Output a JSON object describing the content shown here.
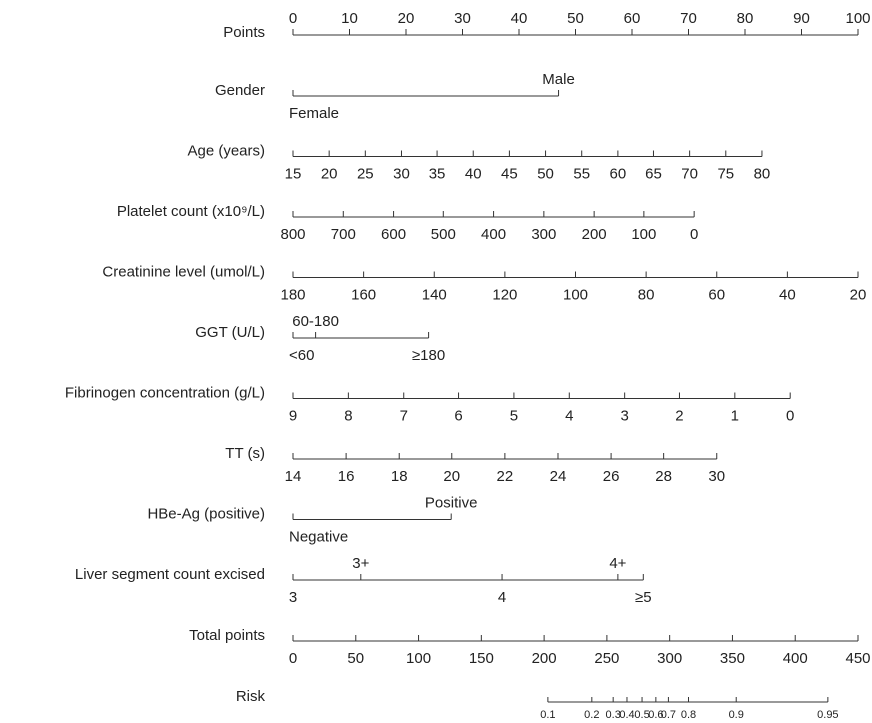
{
  "chart_data": {
    "type": "nomogram",
    "xlim": [
      0,
      100
    ],
    "points": {
      "label": "Points",
      "ticks": [
        0,
        10,
        20,
        30,
        40,
        50,
        60,
        70,
        80,
        90,
        100
      ]
    },
    "rows": [
      {
        "label": "Gender",
        "ticks": [
          {
            "value": 0,
            "label": "Female"
          },
          {
            "value": 47,
            "label": "Male"
          }
        ]
      },
      {
        "label": "Age (years)",
        "ticks": [
          {
            "value": 0,
            "label": "15"
          },
          {
            "value": 6.4,
            "label": "20"
          },
          {
            "value": 12.8,
            "label": "25"
          },
          {
            "value": 19.2,
            "label": "30"
          },
          {
            "value": 25.5,
            "label": "35"
          },
          {
            "value": 31.9,
            "label": "40"
          },
          {
            "value": 38.3,
            "label": "45"
          },
          {
            "value": 44.7,
            "label": "50"
          },
          {
            "value": 51.1,
            "label": "55"
          },
          {
            "value": 57.5,
            "label": "60"
          },
          {
            "value": 63.8,
            "label": "65"
          },
          {
            "value": 70.2,
            "label": "70"
          },
          {
            "value": 76.6,
            "label": "75"
          },
          {
            "value": 83,
            "label": "80"
          }
        ]
      },
      {
        "label": "Platelet count (x10⁹/L)",
        "ticks": [
          {
            "value": 0,
            "label": "800"
          },
          {
            "value": 8.9,
            "label": "700"
          },
          {
            "value": 17.8,
            "label": "600"
          },
          {
            "value": 26.6,
            "label": "500"
          },
          {
            "value": 35.5,
            "label": "400"
          },
          {
            "value": 44.4,
            "label": "300"
          },
          {
            "value": 53.3,
            "label": "200"
          },
          {
            "value": 62.1,
            "label": "100"
          },
          {
            "value": 71,
            "label": "0"
          }
        ]
      },
      {
        "label": "Creatinine level (umol/L)",
        "ticks": [
          {
            "value": 0,
            "label": "180"
          },
          {
            "value": 12.5,
            "label": "160"
          },
          {
            "value": 25,
            "label": "140"
          },
          {
            "value": 37.5,
            "label": "120"
          },
          {
            "value": 50,
            "label": "100"
          },
          {
            "value": 62.5,
            "label": "80"
          },
          {
            "value": 75,
            "label": "60"
          },
          {
            "value": 87.5,
            "label": "40"
          },
          {
            "value": 100,
            "label": "20"
          }
        ]
      },
      {
        "label": "GGT (U/L)",
        "ticks": [
          {
            "value": 0,
            "label": "<60"
          },
          {
            "value": 4,
            "label": "60-180"
          },
          {
            "value": 24,
            "label": "≥180"
          }
        ]
      },
      {
        "label": "Fibrinogen concentration (g/L)",
        "ticks": [
          {
            "value": 0,
            "label": "9"
          },
          {
            "value": 9.8,
            "label": "8"
          },
          {
            "value": 19.6,
            "label": "7"
          },
          {
            "value": 29.3,
            "label": "6"
          },
          {
            "value": 39.1,
            "label": "5"
          },
          {
            "value": 48.9,
            "label": "4"
          },
          {
            "value": 58.7,
            "label": "3"
          },
          {
            "value": 68.4,
            "label": "2"
          },
          {
            "value": 78.2,
            "label": "1"
          },
          {
            "value": 88,
            "label": "0"
          }
        ]
      },
      {
        "label": "TT (s)",
        "ticks": [
          {
            "value": 0,
            "label": "14"
          },
          {
            "value": 9.4,
            "label": "16"
          },
          {
            "value": 18.8,
            "label": "18"
          },
          {
            "value": 28.1,
            "label": "20"
          },
          {
            "value": 37.5,
            "label": "22"
          },
          {
            "value": 46.9,
            "label": "24"
          },
          {
            "value": 56.3,
            "label": "26"
          },
          {
            "value": 65.6,
            "label": "28"
          },
          {
            "value": 75,
            "label": "30"
          }
        ]
      },
      {
        "label": "HBe-Ag (positive)",
        "ticks": [
          {
            "value": 0,
            "label": "Negative"
          },
          {
            "value": 28,
            "label": "Positive"
          }
        ]
      },
      {
        "label": "Liver segment count excised",
        "ticks": [
          {
            "value": 0,
            "label": "3"
          },
          {
            "value": 12,
            "label": "3+"
          },
          {
            "value": 37,
            "label": "4"
          },
          {
            "value": 57.5,
            "label": "4+"
          },
          {
            "value": 62,
            "label": "≥5"
          }
        ]
      }
    ],
    "total": {
      "label": "Total points",
      "xlim": [
        0,
        450
      ],
      "ticks": [
        0,
        50,
        100,
        150,
        200,
        250,
        300,
        350,
        400,
        450
      ]
    },
    "risk": {
      "label": "Risk",
      "ticks": [
        {
          "value": 203,
          "label": "0.1"
        },
        {
          "value": 238,
          "label": "0.2"
        },
        {
          "value": 255,
          "label": "0.3"
        },
        {
          "value": 266,
          "label": "0.4"
        },
        {
          "value": 278,
          "label": "0.5"
        },
        {
          "value": 289,
          "label": "0.6"
        },
        {
          "value": 299,
          "label": "0.7"
        },
        {
          "value": 315,
          "label": "0.8"
        },
        {
          "value": 353,
          "label": "0.9"
        },
        {
          "value": 426,
          "label": "0.95"
        }
      ]
    }
  }
}
